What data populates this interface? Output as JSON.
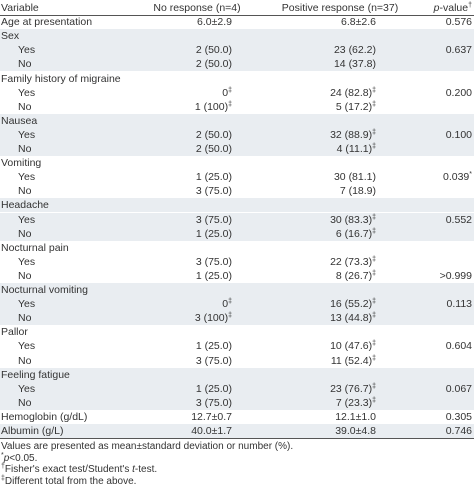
{
  "header": {
    "variable": "Variable",
    "no": "No response (n=4)",
    "pos": "Positive response (n=37)",
    "p": [
      {
        "i": "p"
      },
      {
        "t": "-value"
      },
      {
        "sup": "†"
      }
    ]
  },
  "groups": [
    {
      "label": "Age at presentation",
      "no": "6.0±2.9",
      "pos": "6.8±2.6",
      "p": "0.576"
    },
    {
      "label": "Sex",
      "rows": [
        {
          "label": "Yes",
          "no": "2 (50.0)",
          "pos": "23 (62.2)",
          "p": "0.637"
        },
        {
          "label": "No",
          "no": "2 (50.0)",
          "pos": "14 (37.8)"
        }
      ]
    },
    {
      "label": "Family history of migraine",
      "rows": [
        {
          "label": "Yes",
          "no": [
            {
              "t": "0"
            },
            {
              "sup": "‡"
            }
          ],
          "pos": [
            {
              "t": "24 (82.8)"
            },
            {
              "sup": "‡"
            }
          ],
          "p": "0.200"
        },
        {
          "label": "No",
          "no": [
            {
              "t": "1 (100)"
            },
            {
              "sup": "‡"
            }
          ],
          "pos": [
            {
              "t": "5 (17.2)"
            },
            {
              "sup": "‡"
            }
          ]
        }
      ]
    },
    {
      "label": "Nausea",
      "rows": [
        {
          "label": "Yes",
          "no": "2 (50.0)",
          "pos": [
            {
              "t": "32 (88.9)"
            },
            {
              "sup": "‡"
            }
          ],
          "p": "0.100"
        },
        {
          "label": "No",
          "no": "2 (50.0)",
          "pos": [
            {
              "t": "4 (11.1)"
            },
            {
              "sup": "‡"
            }
          ]
        }
      ]
    },
    {
      "label": "Vomiting",
      "rows": [
        {
          "label": "Yes",
          "no": "1 (25.0)",
          "pos": "30 (81.1)",
          "p": [
            {
              "t": "0.039"
            },
            {
              "sup": "*"
            }
          ]
        },
        {
          "label": "No",
          "no": "3 (75.0)",
          "pos": "7 (18.9)"
        }
      ]
    },
    {
      "label": "Headache",
      "rows": [
        {
          "label": "Yes",
          "no": "3 (75.0)",
          "pos": [
            {
              "t": "30 (83.3)"
            },
            {
              "sup": "‡"
            }
          ],
          "p": "0.552"
        },
        {
          "label": "No",
          "no": "1 (25.0)",
          "pos": [
            {
              "t": "6 (16.7)"
            },
            {
              "sup": "‡"
            }
          ]
        }
      ]
    },
    {
      "label": "Nocturnal pain",
      "rows": [
        {
          "label": "Yes",
          "no": "3 (75.0)",
          "pos": [
            {
              "t": "22 (73.3)"
            },
            {
              "sup": "‡"
            }
          ]
        },
        {
          "label": "No",
          "no": "1 (25.0)",
          "pos": [
            {
              "t": "8 (26.7)"
            },
            {
              "sup": "‡"
            }
          ],
          "p": ">0.999"
        }
      ]
    },
    {
      "label": "Nocturnal vomiting",
      "rows": [
        {
          "label": "Yes",
          "no": [
            {
              "t": "0"
            },
            {
              "sup": "‡"
            }
          ],
          "pos": [
            {
              "t": "16 (55.2)"
            },
            {
              "sup": "‡"
            }
          ],
          "p": "0.113"
        },
        {
          "label": "No",
          "no": [
            {
              "t": "3 (100)"
            },
            {
              "sup": "‡"
            }
          ],
          "pos": [
            {
              "t": "13 (44.8)"
            },
            {
              "sup": "‡"
            }
          ]
        }
      ]
    },
    {
      "label": "Pallor",
      "rows": [
        {
          "label": "Yes",
          "no": "1 (25.0)",
          "pos": [
            {
              "t": "10 (47.6)"
            },
            {
              "sup": "‡"
            }
          ],
          "p": "0.604"
        },
        {
          "label": "No",
          "no": "3 (75.0)",
          "pos": [
            {
              "t": "11 (52.4)"
            },
            {
              "sup": "‡"
            }
          ]
        }
      ]
    },
    {
      "label": "Feeling fatigue",
      "rows": [
        {
          "label": "Yes",
          "no": "1 (25.0)",
          "pos": [
            {
              "t": "23 (76.7)"
            },
            {
              "sup": "‡"
            }
          ],
          "p": "0.067"
        },
        {
          "label": "No",
          "no": "3 (75.0)",
          "pos": [
            {
              "t": "7 (23.3)"
            },
            {
              "sup": "‡"
            }
          ]
        }
      ]
    },
    {
      "label": "Hemoglobin (g/dL)",
      "no": "12.7±0.7",
      "pos": "12.1±1.0",
      "p": "0.305"
    },
    {
      "label": "Albumin (g/L)",
      "no": "40.0±1.7",
      "pos": "39.0±4.8",
      "p": "0.746"
    }
  ],
  "footnotes": [
    "Values are presented as mean±standard deviation or number (%).",
    [
      {
        "sup": "*"
      },
      {
        "i": "p"
      },
      {
        "t": "<0.05."
      }
    ],
    [
      {
        "sup": "†"
      },
      {
        "t": "Fisher's exact test/Student's "
      },
      {
        "i": "t"
      },
      {
        "t": "-test."
      }
    ],
    [
      {
        "sup": "‡"
      },
      {
        "t": "Different total from the above."
      }
    ]
  ]
}
